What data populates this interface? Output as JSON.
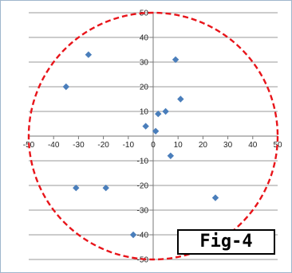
{
  "figure_label": "Fig-4",
  "chart_data": {
    "type": "scatter",
    "title": "",
    "xlabel": "",
    "ylabel": "",
    "xlim": [
      -50,
      50
    ],
    "ylim": [
      -50,
      50
    ],
    "x_ticks": [
      -50,
      -40,
      -30,
      -20,
      -10,
      0,
      10,
      20,
      30,
      40,
      50
    ],
    "y_ticks": [
      -50,
      -40,
      -30,
      -20,
      -10,
      0,
      10,
      20,
      30,
      40,
      50
    ],
    "grid": "horizontal",
    "marker": "diamond",
    "marker_color": "#4a7ebb",
    "points": [
      {
        "x": -35,
        "y": 20
      },
      {
        "x": -26,
        "y": 33
      },
      {
        "x": -31,
        "y": -21
      },
      {
        "x": -19,
        "y": -21
      },
      {
        "x": -8,
        "y": -40
      },
      {
        "x": -3,
        "y": 4
      },
      {
        "x": 1,
        "y": 2
      },
      {
        "x": 2,
        "y": 9
      },
      {
        "x": 5,
        "y": 10
      },
      {
        "x": 7,
        "y": -8
      },
      {
        "x": 9,
        "y": 31
      },
      {
        "x": 11,
        "y": 15
      },
      {
        "x": 25,
        "y": -25
      }
    ],
    "circle": {
      "center_x": 0,
      "center_y": 0,
      "radius": 50,
      "color": "#e8141a",
      "style": "dashed"
    }
  }
}
